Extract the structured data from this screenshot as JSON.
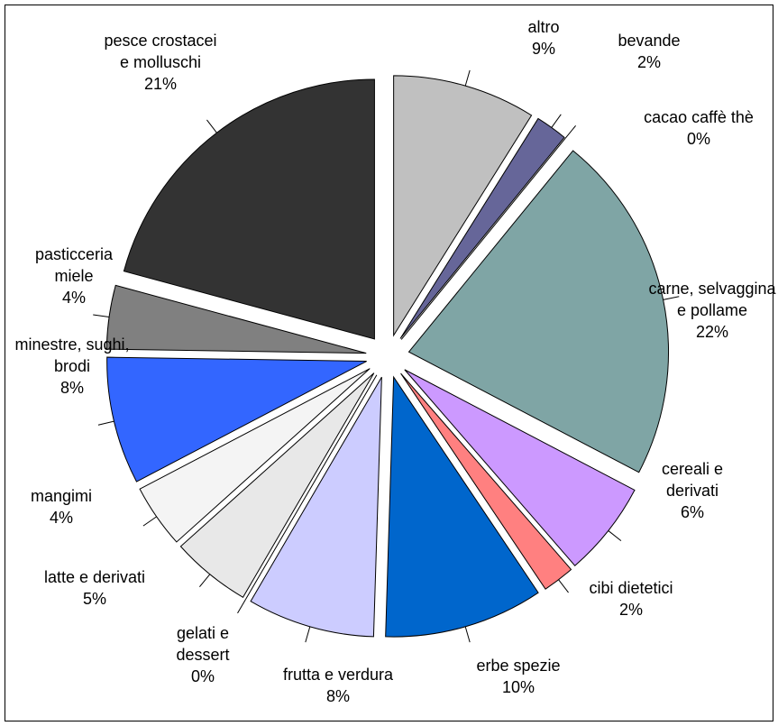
{
  "chart_data": {
    "type": "pie",
    "categories": [
      "altro",
      "bevande",
      "cacao caffè thè",
      "carne, selvaggina e pollame",
      "cereali e derivati",
      "cibi dietetici",
      "erbe spezie",
      "frutta e verdura",
      "gelati e dessert",
      "latte e derivati",
      "mangimi",
      "minestre, sughi, brodi",
      "pasticceria miele",
      "pesce crostacei e molluschi"
    ],
    "values": [
      9,
      2,
      0,
      22,
      6,
      2,
      10,
      8,
      0,
      5,
      4,
      8,
      4,
      21
    ],
    "value_labels": [
      "9%",
      "2%",
      "0%",
      "22%",
      "6%",
      "2%",
      "10%",
      "8%",
      "0%",
      "5%",
      "4%",
      "8%",
      "4%",
      "21%"
    ],
    "colors": [
      "#c0c0c0",
      "#666699",
      "#ffffcc",
      "#7fa5a5",
      "#cc99ff",
      "#ff8080",
      "#0066cc",
      "#ccccff",
      "#000080",
      "#e8e8e8",
      "#f4f4f4",
      "#3366ff",
      "#808080",
      "#333333"
    ]
  }
}
